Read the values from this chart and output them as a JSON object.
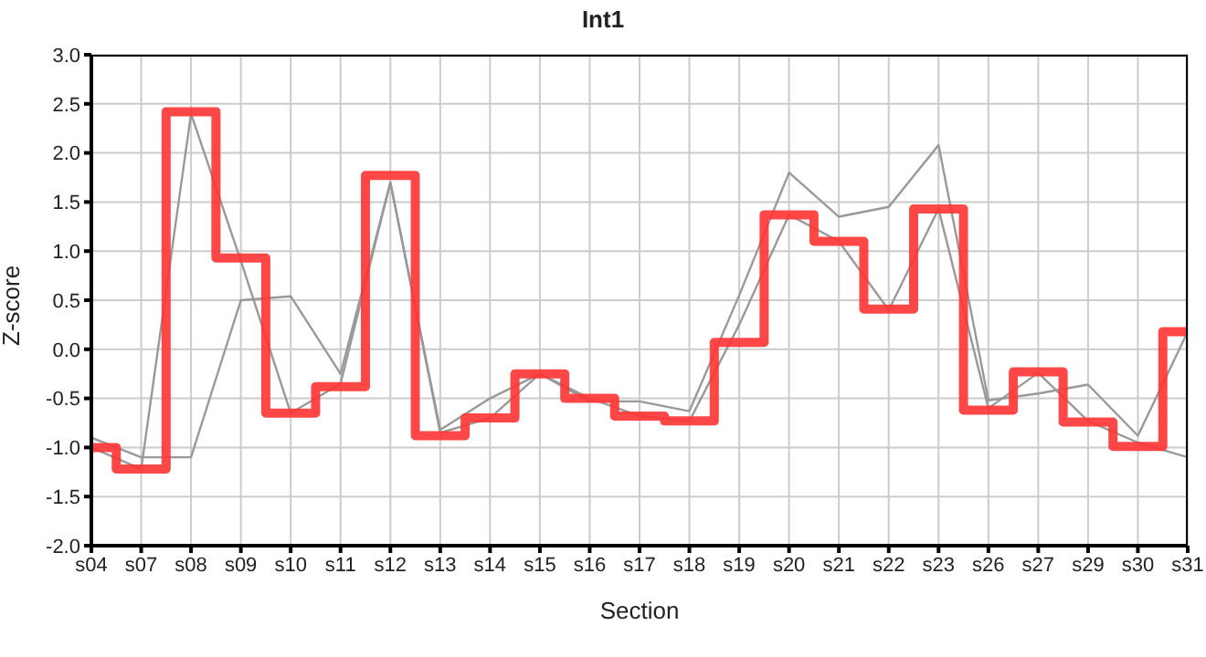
{
  "chart_data": {
    "type": "line",
    "title": "Int1",
    "xlabel": "Section",
    "ylabel": "Z-score",
    "categories": [
      "s04",
      "s07",
      "s08",
      "s09",
      "s10",
      "s11",
      "s12",
      "s13",
      "s14",
      "s15",
      "s16",
      "s17",
      "s18",
      "s19",
      "s20",
      "s21",
      "s22",
      "s23",
      "s26",
      "s27",
      "s29",
      "s30",
      "s31"
    ],
    "series": [
      {
        "color": "#999999",
        "values": [
          -0.9,
          -1.1,
          -1.1,
          0.5,
          0.54,
          -0.25,
          1.7,
          -0.82,
          -0.5,
          -0.25,
          -0.53,
          -0.53,
          -0.63,
          0.55,
          1.8,
          1.35,
          1.45,
          2.08,
          -0.52,
          -0.45,
          -0.36,
          -0.88,
          0.18
        ]
      },
      {
        "color": "#999999",
        "values": [
          -1.0,
          -1.22,
          2.4,
          0.9,
          -0.65,
          -0.35,
          1.7,
          -0.85,
          -0.7,
          -0.25,
          -0.5,
          -0.68,
          -0.73,
          0.25,
          1.37,
          1.1,
          0.4,
          1.43,
          -0.6,
          -0.24,
          -0.73,
          -0.95,
          -1.1
        ]
      },
      {
        "type": "step",
        "color": "#ff3333",
        "values": [
          -1.0,
          -1.22,
          2.42,
          0.93,
          -0.65,
          -0.38,
          1.77,
          -0.88,
          -0.7,
          -0.25,
          -0.5,
          -0.68,
          -0.73,
          0.07,
          1.37,
          1.1,
          0.41,
          1.43,
          -0.62,
          -0.23,
          -0.74,
          -0.99,
          0.18
        ]
      }
    ],
    "ylim": [
      -2,
      3
    ],
    "yticks": [
      {
        "value": -2,
        "label": "-2.0"
      },
      {
        "value": -1.5,
        "label": "-1.5"
      },
      {
        "value": -1,
        "label": "-1.0"
      },
      {
        "value": -0.5,
        "label": "-0.5"
      },
      {
        "value": 0,
        "label": "0.0"
      },
      {
        "value": 0.5,
        "label": "0.5"
      },
      {
        "value": 1,
        "label": "1.0"
      },
      {
        "value": 1.5,
        "label": "1.5"
      },
      {
        "value": 2,
        "label": "2.0"
      },
      {
        "value": 2.5,
        "label": "2.5"
      },
      {
        "value": 3,
        "label": "3.0"
      }
    ],
    "grid": true,
    "legend": false,
    "marker": "none",
    "line_style": "solid"
  }
}
